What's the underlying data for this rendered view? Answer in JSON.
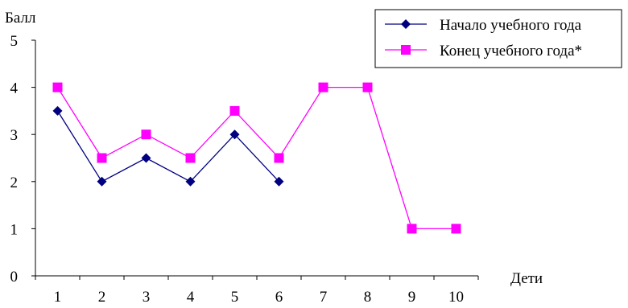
{
  "chart_data": {
    "type": "line",
    "ylabel": "Балл",
    "xlabel": "Дети",
    "categories": [
      "1",
      "2",
      "3",
      "4",
      "5",
      "6",
      "7",
      "8",
      "9",
      "10"
    ],
    "ylim": [
      0,
      5
    ],
    "yticks": [
      "0",
      "1",
      "2",
      "3",
      "4",
      "5"
    ],
    "grid": false,
    "legend_position": "top-right",
    "series": [
      {
        "name": "Начало учебного года",
        "color": "#000080",
        "marker": "diamond",
        "values": [
          3.5,
          2,
          2.5,
          2,
          3,
          2,
          null,
          null,
          null,
          null
        ]
      },
      {
        "name": "Конец учебного года*",
        "color": "#FF00FF",
        "marker": "square",
        "values": [
          4,
          2.5,
          3,
          2.5,
          3.5,
          2.5,
          4,
          4,
          1,
          1
        ]
      }
    ]
  }
}
